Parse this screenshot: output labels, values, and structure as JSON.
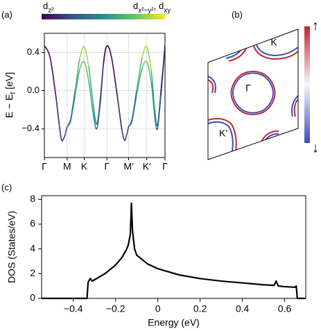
{
  "panel_labels": [
    "(a)",
    "(b)",
    "(c)"
  ],
  "chart_data": [
    {
      "type": "band",
      "colorbar": {
        "colors": [
          "#440154",
          "#3b528b",
          "#21918c",
          "#5ec962",
          "#fde725"
        ],
        "left_label": [
          "d",
          "z²"
        ],
        "right_label": [
          "d",
          "x²−y²",
          ", d",
          "xy"
        ]
      },
      "ylabel": [
        "E − E",
        "f",
        " [eV]"
      ],
      "xlim": [
        0,
        5.3
      ],
      "xticks": [
        {
          "value": 0,
          "label": "Γ"
        },
        {
          "value": 1.0,
          "label": "M"
        },
        {
          "value": 1.75,
          "label": "K"
        },
        {
          "value": 2.75,
          "label": "Γ"
        },
        {
          "value": 3.7,
          "label": "M′"
        },
        {
          "value": 4.5,
          "label": "K′"
        },
        {
          "value": 5.3,
          "label": "Γ"
        }
      ],
      "ylim": [
        -0.7,
        0.6
      ],
      "yticks": [
        0.4,
        {
          "value": 0,
          "label": "0.0"
        },
        {
          "value": -0.4,
          "label": "−0.4"
        }
      ],
      "grid": true,
      "series": [
        {
          "x": [
            0,
            0.25,
            0.5,
            0.65,
            0.76,
            0.9,
            1.0,
            1.15,
            1.35,
            1.55,
            1.75,
            1.95,
            2.15,
            2.3,
            2.45,
            2.6,
            2.75,
            2.95,
            3.2,
            3.4,
            3.52,
            3.62,
            3.7,
            3.85,
            4.05,
            4.3,
            4.5,
            4.7,
            4.85,
            4.97,
            5.12,
            5.3
          ],
          "values": [
            0.47,
            0.35,
            -0.05,
            -0.35,
            -0.52,
            -0.47,
            -0.38,
            -0.3,
            0.0,
            0.33,
            0.46,
            0.25,
            -0.15,
            -0.35,
            -0.1,
            0.3,
            0.47,
            0.35,
            -0.05,
            -0.4,
            -0.52,
            -0.46,
            -0.38,
            -0.3,
            0.0,
            0.35,
            0.46,
            0.2,
            -0.2,
            -0.36,
            0.0,
            0.47
          ],
          "weights": [
            0,
            0.03,
            0.1,
            0.15,
            0.2,
            0.22,
            0.28,
            0.35,
            0.55,
            0.8,
            0.95,
            0.75,
            0.55,
            0.45,
            0.3,
            0.12,
            0,
            0.03,
            0.1,
            0.17,
            0.2,
            0.22,
            0.28,
            0.35,
            0.55,
            0.82,
            0.95,
            0.72,
            0.52,
            0.42,
            0.25,
            0
          ]
        },
        {
          "x": [
            0,
            0.25,
            0.5,
            0.65,
            0.76,
            0.9,
            1.0,
            1.15,
            1.35,
            1.55,
            1.75,
            1.95,
            2.15,
            2.3,
            2.45,
            2.6,
            2.75,
            2.95,
            3.2,
            3.4,
            3.52,
            3.62,
            3.7,
            3.85,
            4.05,
            4.3,
            4.5,
            4.7,
            4.85,
            4.97,
            5.12,
            5.3
          ],
          "values": [
            0.47,
            0.35,
            -0.05,
            -0.35,
            -0.52,
            -0.47,
            -0.38,
            -0.32,
            -0.05,
            0.22,
            0.3,
            0.1,
            -0.25,
            -0.4,
            -0.15,
            0.28,
            0.47,
            0.35,
            -0.05,
            -0.4,
            -0.52,
            -0.46,
            -0.38,
            -0.32,
            -0.05,
            0.24,
            0.3,
            0.08,
            -0.28,
            -0.4,
            -0.05,
            0.47
          ],
          "weights": [
            0,
            0.03,
            0.1,
            0.15,
            0.2,
            0.22,
            0.28,
            0.33,
            0.5,
            0.7,
            0.8,
            0.65,
            0.5,
            0.42,
            0.28,
            0.1,
            0,
            0.03,
            0.1,
            0.17,
            0.2,
            0.22,
            0.28,
            0.33,
            0.5,
            0.72,
            0.8,
            0.62,
            0.48,
            0.4,
            0.22,
            0
          ]
        }
      ]
    },
    {
      "type": "line",
      "xlabel": "Energy (eV)",
      "ylabel": "DOS (States/eV)",
      "color": "#000000",
      "x": [
        -0.55,
        -0.335,
        -0.33,
        -0.32,
        -0.31,
        -0.3,
        -0.25,
        -0.2,
        -0.17,
        -0.15,
        -0.14,
        -0.13,
        -0.125,
        -0.12,
        -0.11,
        -0.1,
        -0.05,
        0,
        0.1,
        0.2,
        0.3,
        0.4,
        0.5,
        0.55,
        0.56,
        0.57,
        0.6,
        0.65,
        0.655,
        0.66,
        0.7
      ],
      "values": [
        0,
        0,
        1.3,
        1.6,
        1.4,
        1.5,
        2.0,
        2.7,
        3.3,
        3.9,
        4.3,
        5.2,
        7.7,
        5.5,
        4.0,
        3.5,
        2.8,
        2.4,
        1.9,
        1.6,
        1.4,
        1.25,
        1.1,
        1.05,
        1.4,
        1.0,
        0.95,
        0.9,
        1.0,
        0,
        0
      ],
      "xlim": [
        -0.55,
        0.7
      ],
      "xticks": [
        {
          "value": -0.4,
          "label": "−0.4"
        },
        {
          "value": -0.2,
          "label": "−0.2"
        },
        0,
        0.2,
        0.4,
        0.6
      ],
      "ylim": [
        0,
        8.3
      ],
      "yticks": [
        0,
        2,
        4,
        6,
        8
      ]
    }
  ],
  "fermi_surface": {
    "labels": [
      "K",
      "Γ",
      "K′"
    ],
    "colorbar": {
      "colors": [
        "#3a4cc0",
        "#f7f7f7",
        "#c0282d"
      ],
      "top_arrow": "↑",
      "bottom_arrow": "↓"
    }
  }
}
